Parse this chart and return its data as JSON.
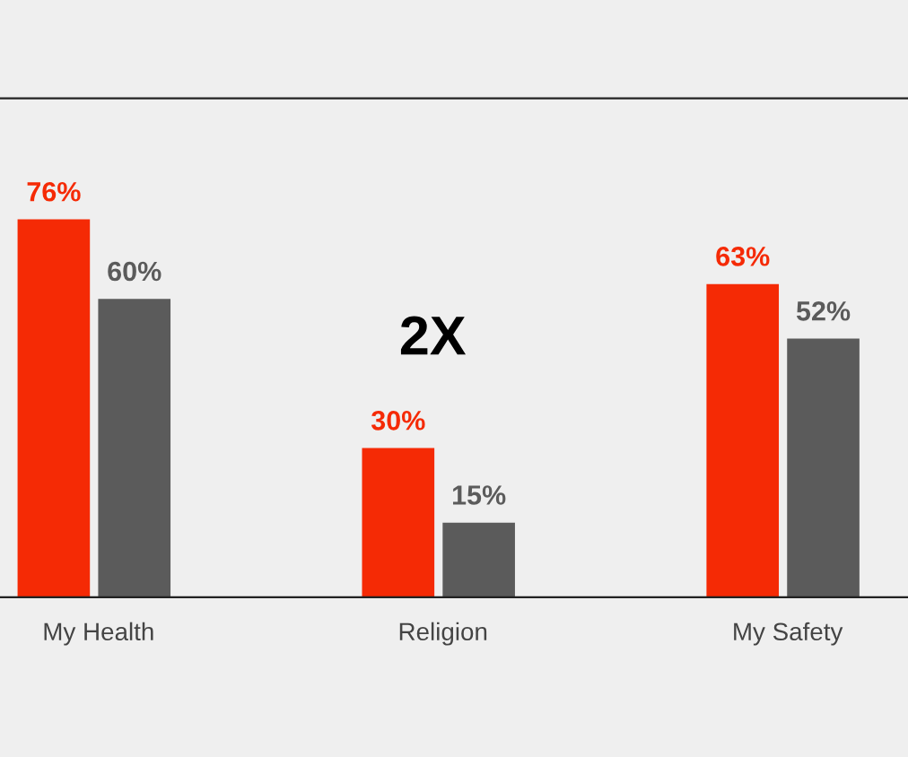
{
  "chart_data": {
    "type": "bar",
    "categories": [
      "My Health",
      "Religion",
      "My Safety"
    ],
    "series": [
      {
        "color": "#f52a05",
        "values": [
          76,
          30,
          63
        ],
        "value_labels": [
          "76%",
          "30%",
          "63%"
        ]
      },
      {
        "color": "#5b5b5b",
        "values": [
          60,
          15,
          52
        ],
        "value_labels": [
          "60%",
          "15%",
          "52%"
        ]
      }
    ],
    "annotations": [
      "2X"
    ],
    "grid": false,
    "legend": false
  }
}
